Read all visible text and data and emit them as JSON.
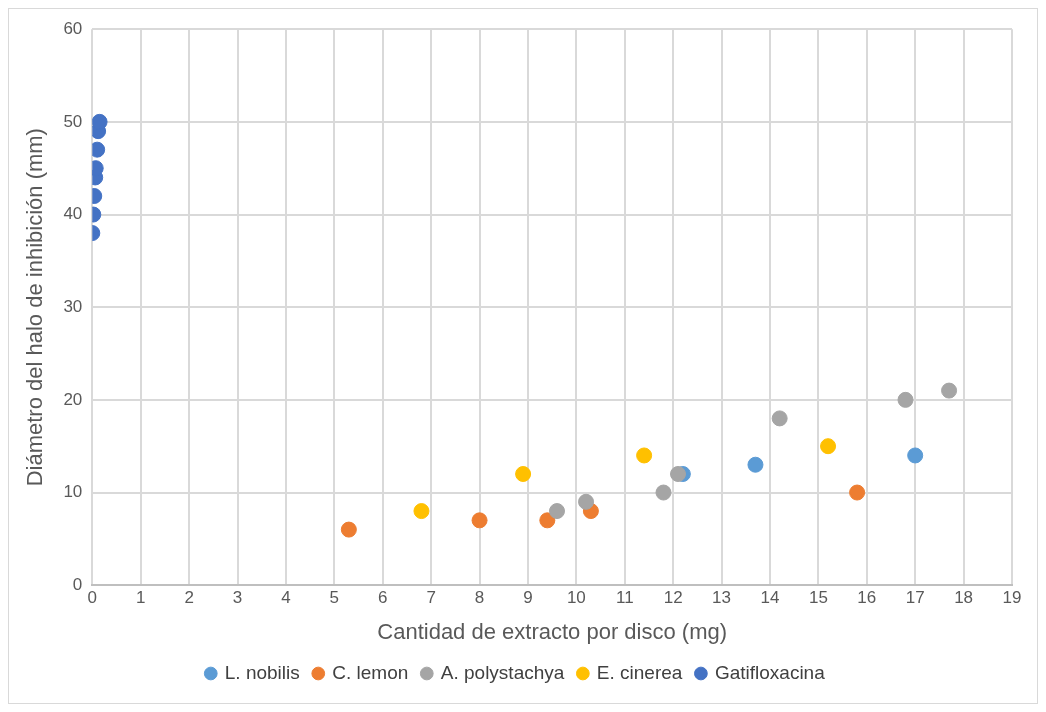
{
  "chart_data": {
    "type": "scatter",
    "xlabel": "Cantidad de extracto por disco (mg)",
    "ylabel": "Diámetro del halo de inhibición (mm)",
    "xlim": [
      0,
      19
    ],
    "xticks": [
      0,
      1,
      2,
      3,
      4,
      5,
      6,
      7,
      8,
      9,
      10,
      11,
      12,
      13,
      14,
      15,
      16,
      17,
      18,
      19
    ],
    "ylim": [
      0,
      60
    ],
    "yticks": [
      0,
      10,
      20,
      30,
      40,
      50,
      60
    ],
    "grid": true,
    "legend": "bottom",
    "marker": "circle",
    "series": [
      {
        "name": "L. nobilis",
        "color": "#5b9bd5",
        "x": [
          12.2,
          13.7,
          17
        ],
        "values": [
          12,
          13,
          14
        ]
      },
      {
        "name": "C. lemon",
        "color": "#ed7d31",
        "x": [
          5.3,
          8,
          9.4,
          10.3,
          15.8
        ],
        "values": [
          6,
          7,
          7,
          8,
          10
        ]
      },
      {
        "name": "A. polystachya",
        "color": "#a5a5a5",
        "x": [
          9.6,
          10.2,
          11.8,
          12.1,
          14.2,
          16.8,
          17.7
        ],
        "values": [
          8,
          9,
          10,
          12,
          18,
          20,
          21
        ]
      },
      {
        "name": "E. cinerea",
        "color": "#ffc000",
        "x": [
          6.8,
          8.9,
          11.4,
          15.2
        ],
        "values": [
          8,
          12,
          14,
          15
        ]
      },
      {
        "name": "Gatifloxacina",
        "color": "#4472c4",
        "x": [
          0,
          0.02,
          0.04,
          0.06,
          0.07,
          0.1,
          0.12,
          0.15
        ],
        "values": [
          38,
          40,
          42,
          44,
          45,
          47,
          49,
          50
        ]
      }
    ]
  }
}
